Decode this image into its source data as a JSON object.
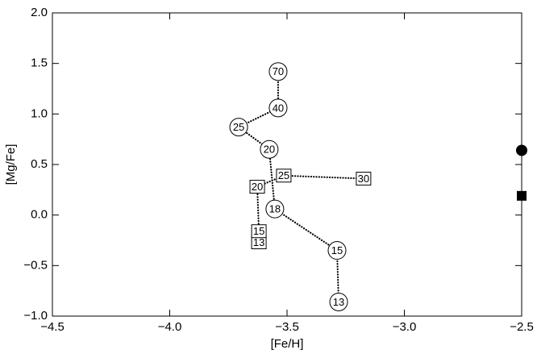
{
  "chart_data": {
    "type": "line",
    "xlabel": "[Fe/H]",
    "ylabel": "[Mg/Fe]",
    "xlim": [
      -4.5,
      -2.5
    ],
    "ylim": [
      -1.0,
      2.0
    ],
    "xticks": [
      {
        "value": -4.5,
        "label": "−4.5"
      },
      {
        "value": -4.0,
        "label": "−4.0"
      },
      {
        "value": -3.5,
        "label": "−3.5"
      },
      {
        "value": -3.0,
        "label": "−3.0"
      },
      {
        "value": -2.5,
        "label": "−2.5"
      }
    ],
    "yticks": [
      {
        "value": -1.0,
        "label": "−1.0"
      },
      {
        "value": -0.5,
        "label": "−0.5"
      },
      {
        "value": 0.0,
        "label": "0.0"
      },
      0.5,
      {
        "value": 1.0,
        "label": "1.0"
      },
      1.5,
      {
        "value": 2.0,
        "label": "2.0"
      }
    ],
    "series": [
      {
        "marker": "open-circle",
        "line": "dotted",
        "color": "#000000",
        "x": [
          -3.538,
          -3.538,
          -3.706,
          -3.576,
          -3.552,
          -3.287,
          -3.28
        ],
        "values": [
          1.42,
          1.06,
          0.87,
          0.65,
          0.06,
          -0.35,
          -0.86
        ],
        "point_labels": [
          70,
          40,
          25,
          20,
          18,
          15,
          13
        ]
      },
      {
        "marker": "open-square",
        "line": "dotted",
        "color": "#000000",
        "x": [
          -3.62,
          -3.62,
          -3.627,
          -3.514,
          -3.174
        ],
        "values": [
          -0.27,
          -0.16,
          0.28,
          0.39,
          0.36
        ],
        "point_labels": [
          13,
          15,
          20,
          25,
          30
        ]
      },
      {
        "marker": "filled-circle",
        "color": "#000000",
        "x": [
          -2.5
        ],
        "values": [
          0.64
        ]
      },
      {
        "marker": "filled-square",
        "color": "#000000",
        "x": [
          -2.5
        ],
        "values": [
          0.19
        ]
      }
    ]
  }
}
